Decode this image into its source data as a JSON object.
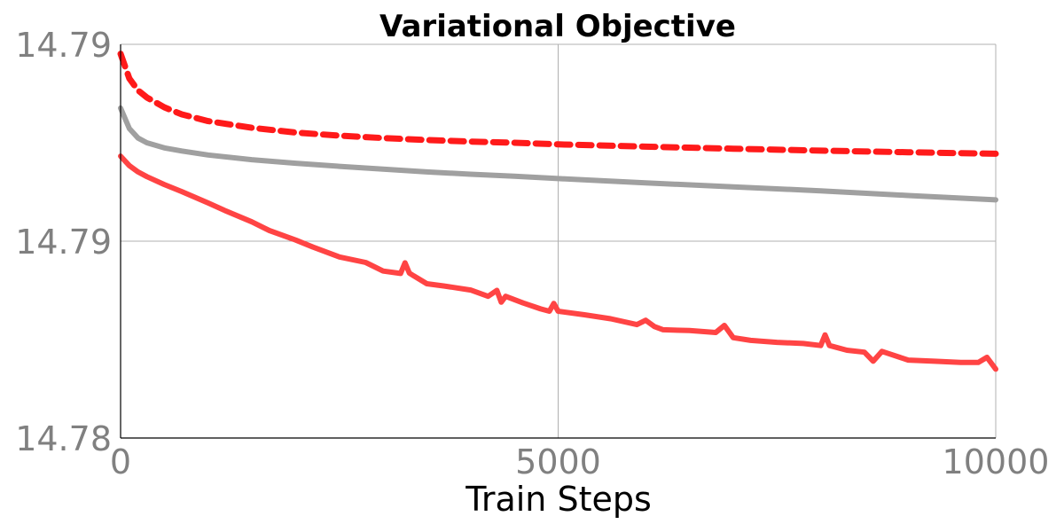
{
  "chart_data": {
    "type": "line",
    "title": "Variational Objective",
    "xlabel": "Train Steps",
    "ylabel": "",
    "xlim": [
      0,
      10000
    ],
    "ylim": [
      14.78,
      14.79
    ],
    "grid": true,
    "legend": "none",
    "x_ticks": [
      {
        "value": 0,
        "label": "0"
      },
      {
        "value": 5000,
        "label": "5000"
      },
      {
        "value": 10000,
        "label": "10000"
      }
    ],
    "y_ticks": [
      {
        "value": 14.78,
        "label": "14.78"
      },
      {
        "value": 14.785,
        "label": "14.79"
      },
      {
        "value": 14.79,
        "label": "14.79"
      }
    ],
    "series": [
      {
        "style": "dashed",
        "color": "#ff1a1a",
        "x": [
          0,
          100,
          200,
          300,
          500,
          700,
          1000,
          1500,
          2000,
          2500,
          3000,
          3500,
          4000,
          4500,
          5000,
          6000,
          7000,
          8000,
          9000,
          10000
        ],
        "y": [
          14.78976,
          14.78913,
          14.78883,
          14.78865,
          14.7884,
          14.78822,
          14.78805,
          14.78788,
          14.78776,
          14.78768,
          14.78762,
          14.78757,
          14.78753,
          14.7875,
          14.78746,
          14.7874,
          14.78735,
          14.7873,
          14.78726,
          14.78722
        ]
      },
      {
        "style": "solid",
        "color": "#a0a0a0",
        "x": [
          0,
          100,
          200,
          300,
          500,
          700,
          1000,
          1500,
          2000,
          2500,
          3000,
          3500,
          4000,
          4500,
          5000,
          6000,
          7000,
          8000,
          9000,
          10000
        ],
        "y": [
          14.78838,
          14.78786,
          14.78762,
          14.7875,
          14.78737,
          14.78729,
          14.78719,
          14.78707,
          14.78698,
          14.7869,
          14.78683,
          14.78676,
          14.7867,
          14.78665,
          14.78659,
          14.78648,
          14.78638,
          14.78628,
          14.78616,
          14.78605
        ]
      },
      {
        "style": "solid",
        "color": "#ff4444",
        "x": [
          0,
          100,
          200,
          300,
          500,
          700,
          1000,
          1200,
          1500,
          1700,
          2000,
          2200,
          2500,
          2800,
          3000,
          3200,
          3250,
          3300,
          3350,
          3500,
          3700,
          4000,
          4200,
          4300,
          4350,
          4400,
          4600,
          4800,
          4900,
          4950,
          5000,
          5300,
          5600,
          5900,
          6000,
          6100,
          6200,
          6500,
          6800,
          6900,
          7000,
          7200,
          7500,
          7800,
          8000,
          8050,
          8100,
          8300,
          8500,
          8600,
          8700,
          9000,
          9300,
          9600,
          9800,
          9900,
          10000
        ],
        "y": [
          14.78716,
          14.78692,
          14.78676,
          14.78664,
          14.78644,
          14.78626,
          14.78597,
          14.78577,
          14.78549,
          14.78527,
          14.78503,
          14.78485,
          14.7846,
          14.78446,
          14.78424,
          14.78418,
          14.78445,
          14.78419,
          14.78412,
          14.78392,
          14.78386,
          14.78376,
          14.7836,
          14.78375,
          14.78345,
          14.7836,
          14.78343,
          14.78328,
          14.78322,
          14.78342,
          14.78322,
          14.78313,
          14.78303,
          14.78288,
          14.78299,
          14.78283,
          14.78275,
          14.78273,
          14.78268,
          14.78286,
          14.78255,
          14.78248,
          14.78243,
          14.7824,
          14.78235,
          14.78262,
          14.78235,
          14.78223,
          14.78218,
          14.78195,
          14.7822,
          14.78198,
          14.78195,
          14.78192,
          14.78192,
          14.78205,
          14.78175
        ]
      }
    ]
  }
}
